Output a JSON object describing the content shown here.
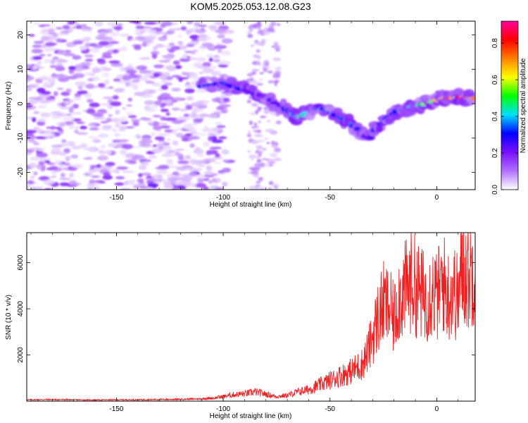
{
  "title": "KOM5.2025.053.12.08.G23",
  "chart_data": [
    {
      "type": "heatmap",
      "xlabel": "Height of straight line (km)",
      "ylabel": "Frequency (Hz)",
      "xlim": [
        -192,
        18
      ],
      "ylim": [
        -25,
        24
      ],
      "xticks": [
        -150,
        -100,
        -50,
        0
      ],
      "xtick_labels": [
        "-150",
        "-100",
        "-50",
        "0"
      ],
      "yticks": [
        20,
        10,
        0,
        -10,
        -20
      ],
      "ytick_labels": [
        "20",
        "10",
        "0",
        "-10",
        "-20"
      ],
      "colorbar": {
        "label": "Normalized spectral amplitude",
        "range": [
          0.0,
          0.92
        ],
        "ticks": [
          0.0,
          0.2,
          0.4,
          0.6,
          0.8
        ],
        "tick_labels": [
          "0.0",
          "0.2",
          "0.4",
          "0.6",
          "0.8"
        ],
        "colormap": [
          "#ffffff",
          "#b070ff",
          "#7a10ff",
          "#0000ff",
          "#00e0ff",
          "#00ff00",
          "#ffff00",
          "#ff8000",
          "#ff0000",
          "#ff00a0"
        ]
      },
      "ridge_track": [
        {
          "x": -110,
          "y": 5,
          "amp": 0.3
        },
        {
          "x": -100,
          "y": 6,
          "amp": 0.35
        },
        {
          "x": -90,
          "y": 4,
          "amp": 0.3
        },
        {
          "x": -80,
          "y": 2,
          "amp": 0.25
        },
        {
          "x": -72,
          "y": -1,
          "amp": 0.3
        },
        {
          "x": -65,
          "y": -4,
          "amp": 0.45
        },
        {
          "x": -55,
          "y": -1,
          "amp": 0.35
        },
        {
          "x": -45,
          "y": -4,
          "amp": 0.35
        },
        {
          "x": -38,
          "y": -7,
          "amp": 0.35
        },
        {
          "x": -32,
          "y": -10,
          "amp": 0.3
        },
        {
          "x": -25,
          "y": -5,
          "amp": 0.3
        },
        {
          "x": -18,
          "y": -2,
          "amp": 0.35
        },
        {
          "x": -12,
          "y": -1,
          "amp": 0.45
        },
        {
          "x": -5,
          "y": 0,
          "amp": 0.6
        },
        {
          "x": 0,
          "y": 1,
          "amp": 0.7
        },
        {
          "x": 5,
          "y": 1.5,
          "amp": 0.8
        },
        {
          "x": 12,
          "y": 2,
          "amp": 0.9
        },
        {
          "x": 18,
          "y": 1.5,
          "amp": 0.75
        }
      ]
    },
    {
      "type": "line",
      "xlabel": "Height of straight line (km)",
      "ylabel": "SNR (10 * v/v)",
      "xlim": [
        -192,
        18
      ],
      "ylim": [
        0,
        7300
      ],
      "xticks": [
        -150,
        -100,
        -50,
        0
      ],
      "xtick_labels": [
        "-150",
        "-100",
        "-50",
        "0"
      ],
      "yticks": [
        2000,
        4000,
        6000
      ],
      "ytick_labels": [
        "2000",
        "4000",
        "6000"
      ],
      "color": "#ee2020",
      "series": [
        {
          "x": [
            -192,
            -180,
            -170,
            -160,
            -150,
            -140,
            -130,
            -120,
            -110,
            -105,
            -100,
            -95,
            -90,
            -85,
            -80,
            -75,
            -70,
            -65,
            -60,
            -55,
            -50,
            -45,
            -40,
            -35,
            -32,
            -30,
            -28,
            -25,
            -22,
            -20,
            -18,
            -15,
            -12,
            -10,
            -8,
            -5,
            -2,
            0,
            3,
            5,
            8,
            10,
            12,
            15,
            18
          ],
          "values": [
            60,
            70,
            60,
            50,
            60,
            60,
            70,
            80,
            100,
            130,
            200,
            280,
            320,
            400,
            300,
            200,
            250,
            400,
            500,
            700,
            900,
            1100,
            1300,
            1600,
            2200,
            2800,
            3500,
            4200,
            4000,
            3500,
            4500,
            4800,
            5200,
            5000,
            4700,
            4500,
            4800,
            4500,
            5200,
            4600,
            4800,
            4400,
            5800,
            5400,
            6000
          ]
        }
      ]
    }
  ]
}
